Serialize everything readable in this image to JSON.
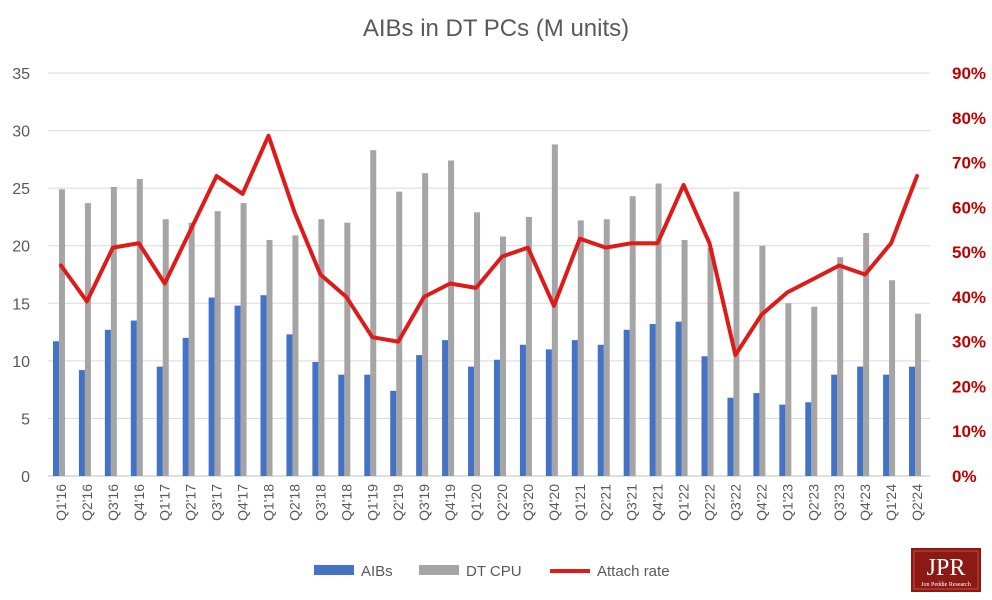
{
  "chart_data": {
    "type": "bar",
    "title": "AIBs in DT PCs (M units)",
    "categories": [
      "Q1'16",
      "Q2'16",
      "Q3'16",
      "Q4'16",
      "Q1'17",
      "Q2'17",
      "Q3'17",
      "Q4'17",
      "Q1'18",
      "Q2'18",
      "Q3'18",
      "Q4'18",
      "Q1'19",
      "Q2'19",
      "Q3'19",
      "Q4'19",
      "Q1'20",
      "Q2'20",
      "Q3'20",
      "Q4'20",
      "Q1'21",
      "Q2'21",
      "Q3'21",
      "Q4'21",
      "Q1'22",
      "Q2'22",
      "Q3'22",
      "Q4'22",
      "Q1'23",
      "Q2'23",
      "Q3'23",
      "Q4'23",
      "Q1'24",
      "Q2'24"
    ],
    "series": [
      {
        "name": "AIBs",
        "type": "bar",
        "axis": "left",
        "color": "#4472c4",
        "values": [
          11.7,
          9.2,
          12.7,
          13.5,
          9.5,
          12.0,
          15.5,
          14.8,
          15.7,
          12.3,
          9.9,
          8.8,
          8.8,
          7.4,
          10.5,
          11.8,
          9.5,
          10.1,
          11.4,
          11.0,
          11.8,
          11.4,
          12.7,
          13.2,
          13.4,
          10.4,
          6.8,
          7.2,
          6.2,
          6.4,
          8.8,
          9.5,
          8.8,
          9.5
        ]
      },
      {
        "name": "DT CPU",
        "type": "bar",
        "axis": "left",
        "color": "#a5a5a5",
        "values": [
          24.9,
          23.7,
          25.1,
          25.8,
          22.3,
          22.0,
          23.0,
          23.7,
          20.5,
          20.9,
          22.3,
          22.0,
          28.3,
          24.7,
          26.3,
          27.4,
          22.9,
          20.8,
          22.5,
          28.8,
          22.2,
          22.3,
          24.3,
          25.4,
          20.5,
          19.8,
          24.7,
          20.0,
          15.0,
          14.7,
          19.0,
          21.1,
          17.0,
          14.1
        ]
      },
      {
        "name": "Attach rate",
        "type": "line",
        "axis": "right",
        "color": "#dd1c1a",
        "values": [
          47,
          39,
          51,
          52,
          43,
          55,
          67,
          63,
          76,
          59,
          45,
          40,
          31,
          30,
          40,
          43,
          42,
          49,
          51,
          38,
          53,
          51,
          52,
          52,
          65,
          52,
          27,
          36,
          41,
          44,
          47,
          45,
          52,
          67
        ]
      }
    ],
    "ylim": [
      0,
      35
    ],
    "yticks": [
      "0",
      "5",
      "10",
      "15",
      "20",
      "25",
      "30",
      "35"
    ],
    "y2lim": [
      0,
      90
    ],
    "y2ticks": [
      "0%",
      "10%",
      "20%",
      "30%",
      "40%",
      "50%",
      "60%",
      "70%",
      "80%",
      "90%"
    ],
    "grid": true,
    "legend_position": "bottom"
  },
  "logo": {
    "main": "JPR",
    "sub": "Jon Peddie Research"
  }
}
